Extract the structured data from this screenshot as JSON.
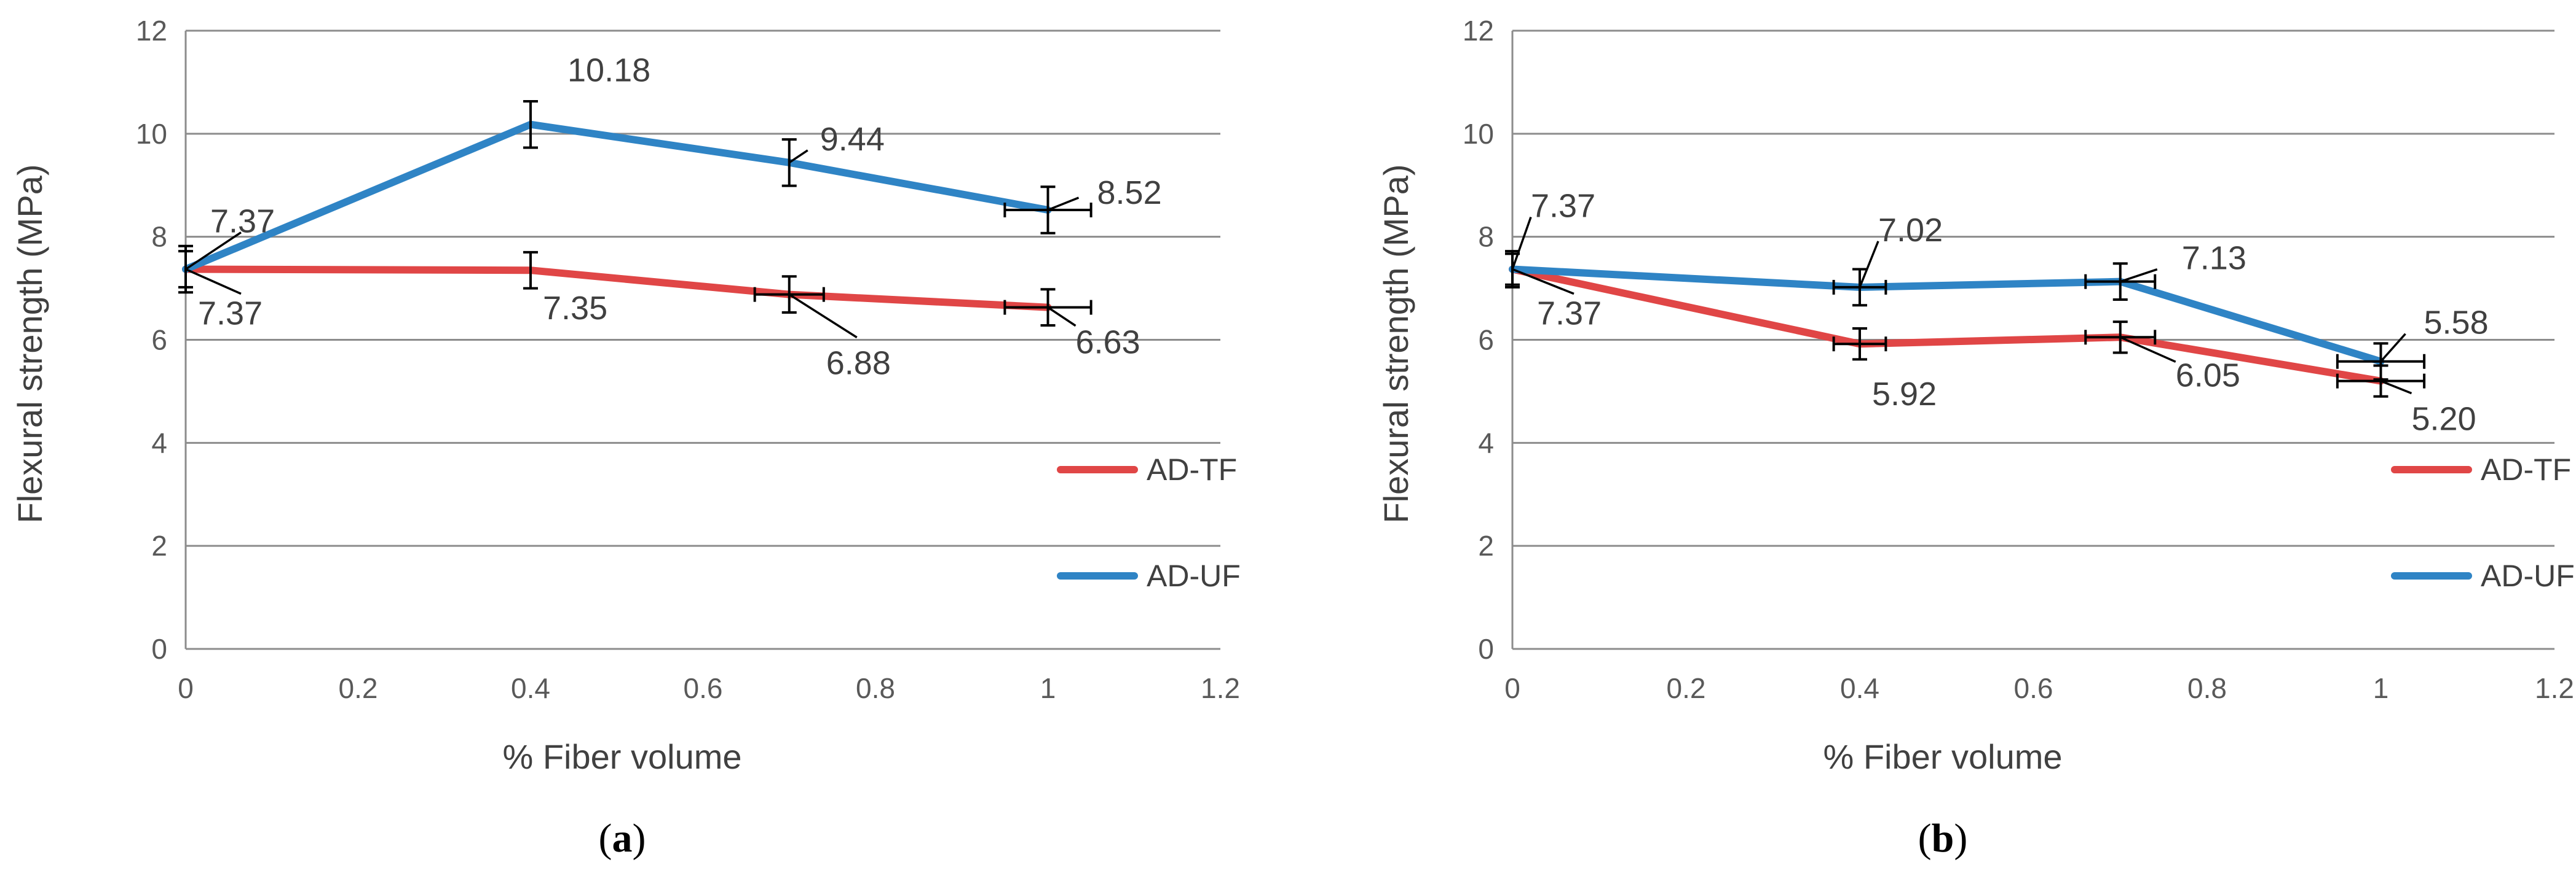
{
  "chart_data": [
    {
      "id": "a",
      "type": "line",
      "caption_letter": "a",
      "xlabel": "% Fiber volume",
      "ylabel": "Flexural strength (MPa)",
      "xlim": [
        0,
        1.2
      ],
      "ylim": [
        0,
        12
      ],
      "xticks": [
        0,
        0.2,
        0.4,
        0.6,
        0.8,
        1,
        1.2
      ],
      "yticks": [
        0,
        2,
        4,
        6,
        8,
        10,
        12
      ],
      "xtick_labels": [
        "0",
        "0.2",
        "0.4",
        "0.6",
        "0.8",
        "1",
        "1.2"
      ],
      "ytick_labels": [
        "0",
        "2",
        "4",
        "6",
        "8",
        "10",
        "12"
      ],
      "grid": true,
      "legend_position": "right",
      "series": [
        {
          "name": "AD-TF",
          "color": "#e04646",
          "x": [
            0,
            0.4,
            0.7,
            1
          ],
          "y": [
            7.37,
            7.35,
            6.88,
            6.63
          ],
          "labels": [
            "7.37",
            "7.35",
            "6.88",
            "6.63"
          ],
          "y_error": 0.35,
          "x_error": [
            0,
            0,
            0.04,
            0.05
          ]
        },
        {
          "name": "AD-UF",
          "color": "#2f84c5",
          "x": [
            0,
            0.4,
            0.7,
            1
          ],
          "y": [
            7.37,
            10.18,
            9.44,
            8.52
          ],
          "labels": [
            "7.37",
            "10.18",
            "9.44",
            "8.52"
          ],
          "y_error": 0.45,
          "x_error": [
            0,
            0,
            0,
            0.05
          ]
        }
      ]
    },
    {
      "id": "b",
      "type": "line",
      "caption_letter": "b",
      "xlabel": "% Fiber volume",
      "ylabel": "Flexural strength (MPa)",
      "xlim": [
        0,
        1.2
      ],
      "ylim": [
        0,
        12
      ],
      "xticks": [
        0,
        0.2,
        0.4,
        0.6,
        0.8,
        1,
        1.2
      ],
      "yticks": [
        0,
        2,
        4,
        6,
        8,
        10,
        12
      ],
      "xtick_labels": [
        "0",
        "0.2",
        "0.4",
        "0.6",
        "0.8",
        "1",
        "1.2"
      ],
      "ytick_labels": [
        "0",
        "2",
        "4",
        "6",
        "8",
        "10",
        "12"
      ],
      "grid": true,
      "legend_position": "right",
      "series": [
        {
          "name": "AD-TF",
          "color": "#e04646",
          "x": [
            0,
            0.4,
            0.7,
            1
          ],
          "y": [
            7.37,
            5.92,
            6.05,
            5.2
          ],
          "labels": [
            "7.37",
            "5.92",
            "6.05",
            "5.20"
          ],
          "y_error": 0.3,
          "x_error": [
            0,
            0.03,
            0.04,
            0.05
          ]
        },
        {
          "name": "AD-UF",
          "color": "#2f84c5",
          "x": [
            0,
            0.4,
            0.7,
            1
          ],
          "y": [
            7.37,
            7.02,
            7.13,
            5.58
          ],
          "labels": [
            "7.37",
            "7.02",
            "7.13",
            "5.58"
          ],
          "y_error": 0.35,
          "x_error": [
            0,
            0.03,
            0.04,
            0.05
          ]
        }
      ]
    }
  ]
}
